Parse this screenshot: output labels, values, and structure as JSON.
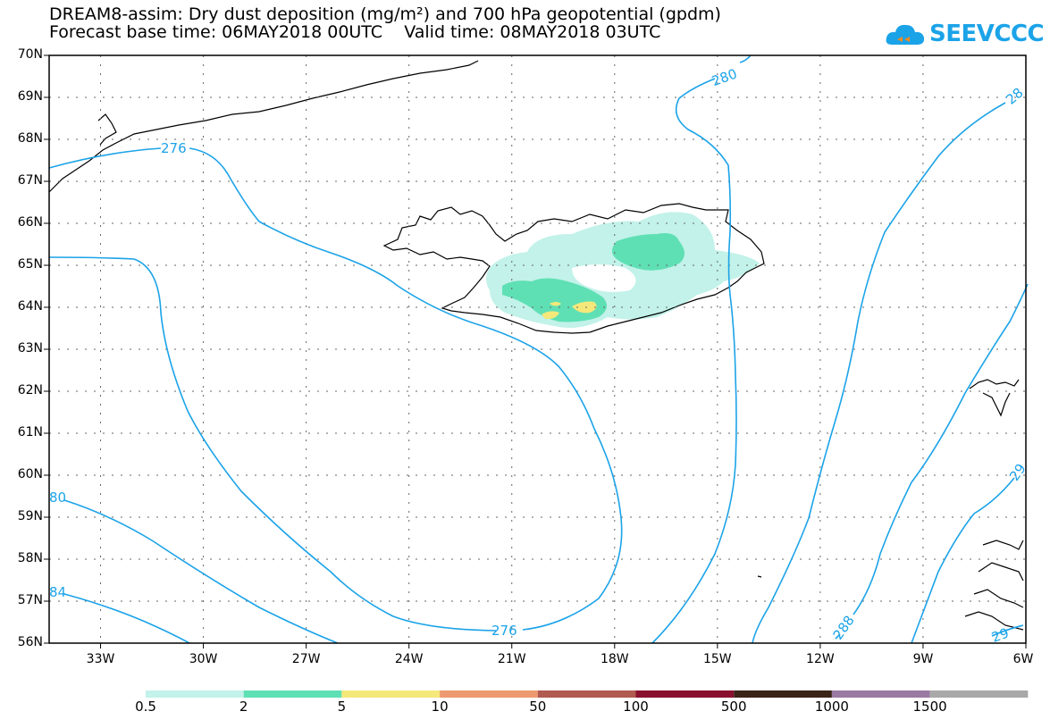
{
  "title": {
    "line1": "DREAM8-assim: Dry dust deposition (mg/m²) and 700 hPa geopotential (gpdm)",
    "line2": "Forecast base time: 06MAY2018 00UTC    Valid time: 08MAY2018 03UTC"
  },
  "logo": {
    "text": "SEEVCCC",
    "icon": "cloud-icon",
    "color": "#1ba3e8"
  },
  "map": {
    "lat_labels": [
      "70N",
      "69N",
      "68N",
      "67N",
      "66N",
      "65N",
      "64N",
      "63N",
      "62N",
      "61N",
      "60N",
      "59N",
      "58N",
      "57N",
      "56N"
    ],
    "lon_labels": [
      "33W",
      "30W",
      "27W",
      "24W",
      "21W",
      "18W",
      "15W",
      "12W",
      "9W",
      "6W"
    ],
    "lon_values": [
      -33,
      -30,
      -27,
      -24,
      -21,
      -18,
      -15,
      -12,
      -9,
      -6
    ],
    "lat_values": [
      70,
      69,
      68,
      67,
      66,
      65,
      64,
      63,
      62,
      61,
      60,
      59,
      58,
      57,
      56
    ],
    "contour_color": "#1ba3e8",
    "contour_labels": [
      "276",
      "280",
      "28",
      "276",
      "80",
      "84",
      "276",
      "288",
      "29",
      "29"
    ]
  },
  "colorbar": {
    "labels": [
      "0.5",
      "2",
      "5",
      "10",
      "50",
      "100",
      "500",
      "1000",
      "1500"
    ],
    "colors": [
      "#c2f2e9",
      "#5fe0b4",
      "#f5e87a",
      "#ee9a70",
      "#b05a50",
      "#8a1030",
      "#3a2418",
      "#9a7aa2",
      "#a8a8a8"
    ]
  }
}
